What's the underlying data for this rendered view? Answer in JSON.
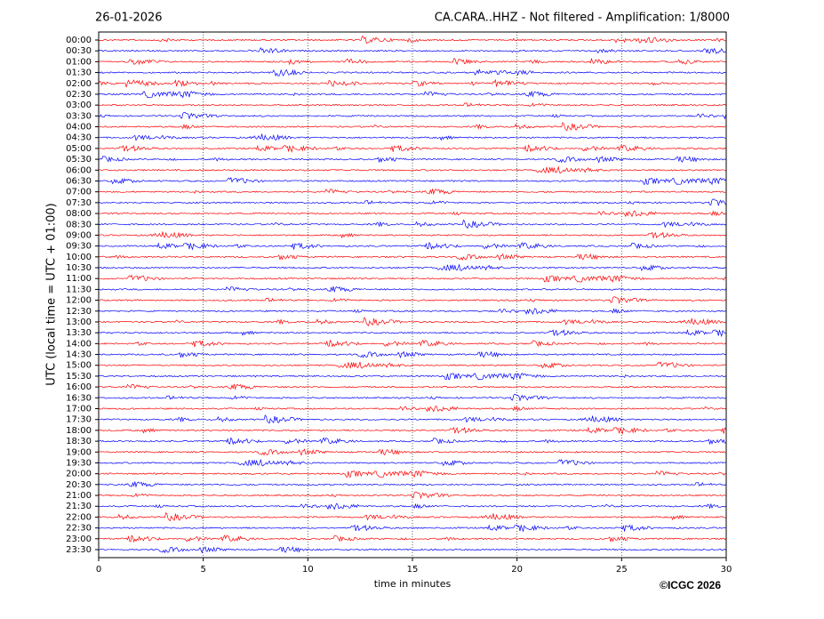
{
  "chart_data": {
    "type": "helicorder",
    "date": "26-01-2026",
    "title": "CA.CARA..HHZ - Not filtered - Amplification: 1/8000",
    "y_label": "UTC (local time = UTC + 01:00)",
    "x_label": "time in minutes",
    "copyright": "©ICGC 2026",
    "categories": [
      "00:00",
      "00:30",
      "01:00",
      "01:30",
      "02:00",
      "02:30",
      "03:00",
      "03:30",
      "04:00",
      "04:30",
      "05:00",
      "05:30",
      "06:00",
      "06:30",
      "07:00",
      "07:30",
      "08:00",
      "08:30",
      "09:00",
      "09:30",
      "10:00",
      "10:30",
      "11:00",
      "11:30",
      "12:00",
      "12:30",
      "13:00",
      "13:30",
      "14:00",
      "14:30",
      "15:00",
      "15:30",
      "16:00",
      "16:30",
      "17:00",
      "17:30",
      "18:00",
      "18:30",
      "19:00",
      "19:30",
      "20:00",
      "20:30",
      "21:00",
      "21:30",
      "22:00",
      "22:30",
      "23:00",
      "23:30"
    ],
    "colors": [
      "#ff0000",
      "#0000ff"
    ],
    "xlim": [
      0,
      30
    ],
    "xticks": [
      0,
      5,
      10,
      15,
      20,
      25,
      30
    ],
    "grid": true
  }
}
